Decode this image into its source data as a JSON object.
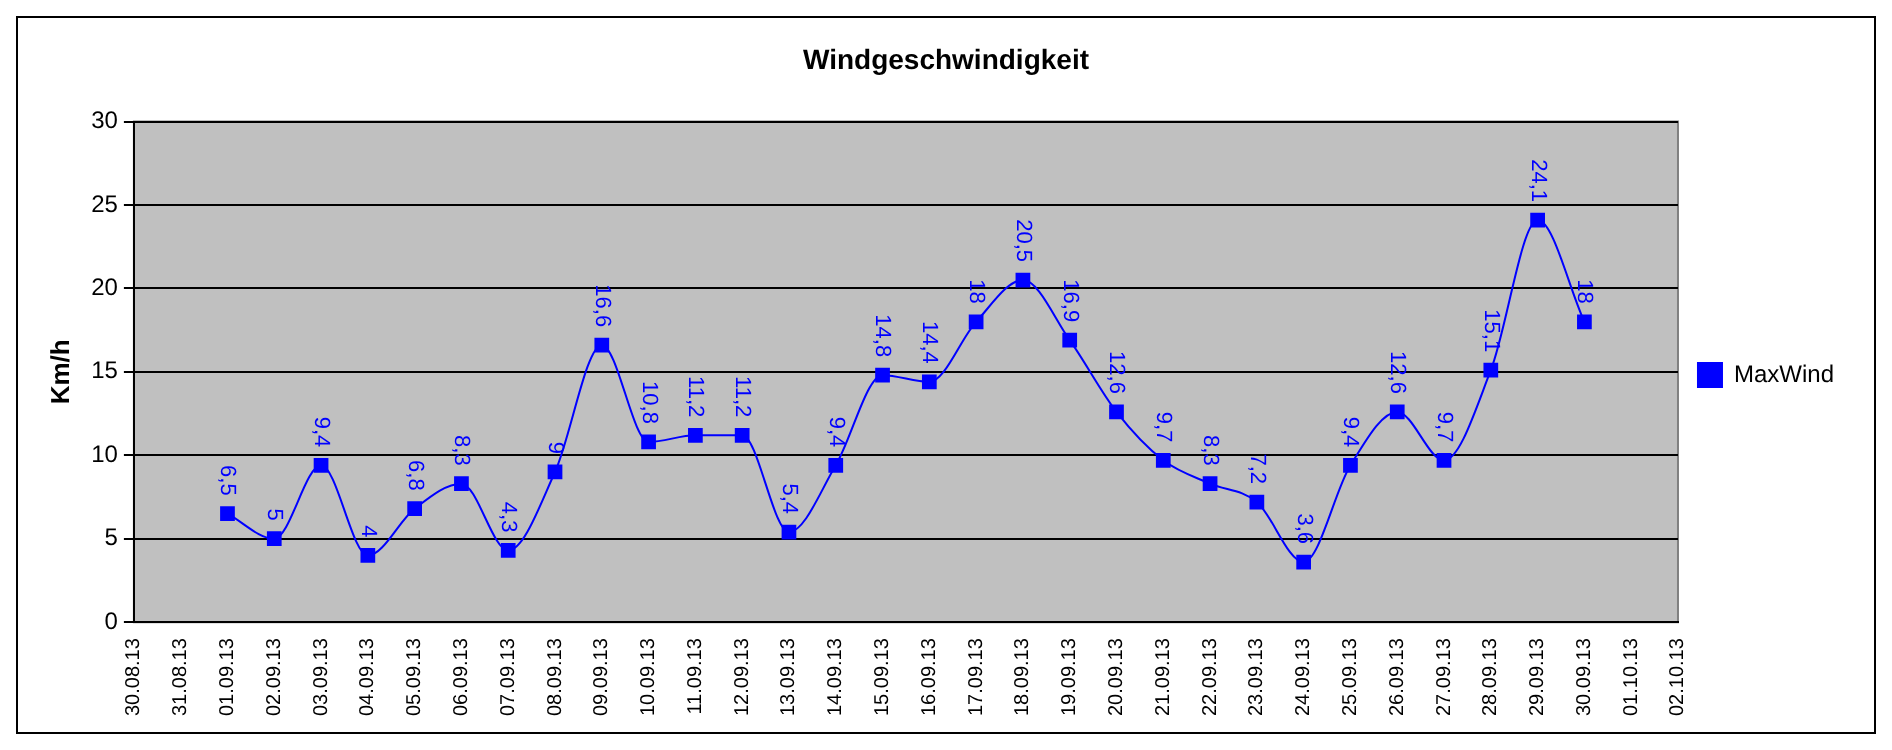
{
  "chart_data": {
    "type": "line",
    "title": "Windgeschwindigkeit",
    "ylabel": "Km/h",
    "categories": [
      "30.08.13",
      "31.08.13",
      "01.09.13",
      "02.09.13",
      "03.09.13",
      "04.09.13",
      "05.09.13",
      "06.09.13",
      "07.09.13",
      "08.09.13",
      "09.09.13",
      "10.09.13",
      "11.09.13",
      "12.09.13",
      "13.09.13",
      "14.09.13",
      "15.09.13",
      "16.09.13",
      "17.09.13",
      "18.09.13",
      "19.09.13",
      "20.09.13",
      "21.09.13",
      "22.09.13",
      "23.09.13",
      "24.09.13",
      "25.09.13",
      "26.09.13",
      "27.09.13",
      "28.09.13",
      "29.09.13",
      "30.09.13",
      "01.10.13",
      "02.10.13"
    ],
    "series": [
      {
        "name": "MaxWind",
        "color": "#0000ff",
        "values": [
          null,
          null,
          6.5,
          5,
          9.4,
          4,
          6.8,
          8.3,
          4.3,
          9,
          16.6,
          10.8,
          11.2,
          11.2,
          5.4,
          9.4,
          14.8,
          14.4,
          18,
          20.5,
          16.9,
          12.6,
          9.7,
          8.3,
          7.2,
          3.6,
          9.4,
          12.6,
          9.7,
          15.1,
          24.1,
          18,
          null,
          null
        ],
        "value_labels": [
          null,
          null,
          "6,5",
          "5",
          "9,4",
          "4",
          "6,8",
          "8,3",
          "4,3",
          "9",
          "16,6",
          "10,8",
          "11,2",
          "11,2",
          "5,4",
          "9,4",
          "14,8",
          "14,4",
          "18",
          "20,5",
          "16,9",
          "12,6",
          "9,7",
          "8,3",
          "7,2",
          "3,6",
          "9,4",
          "12,6",
          "9,7",
          "15,1",
          "24,1",
          "18",
          null,
          null
        ]
      }
    ],
    "ylim": [
      0,
      30
    ],
    "yticks": [
      0,
      5,
      10,
      15,
      20,
      25,
      30
    ],
    "grid": "y",
    "legend": "right",
    "marker": "square",
    "line_style": "solid"
  }
}
